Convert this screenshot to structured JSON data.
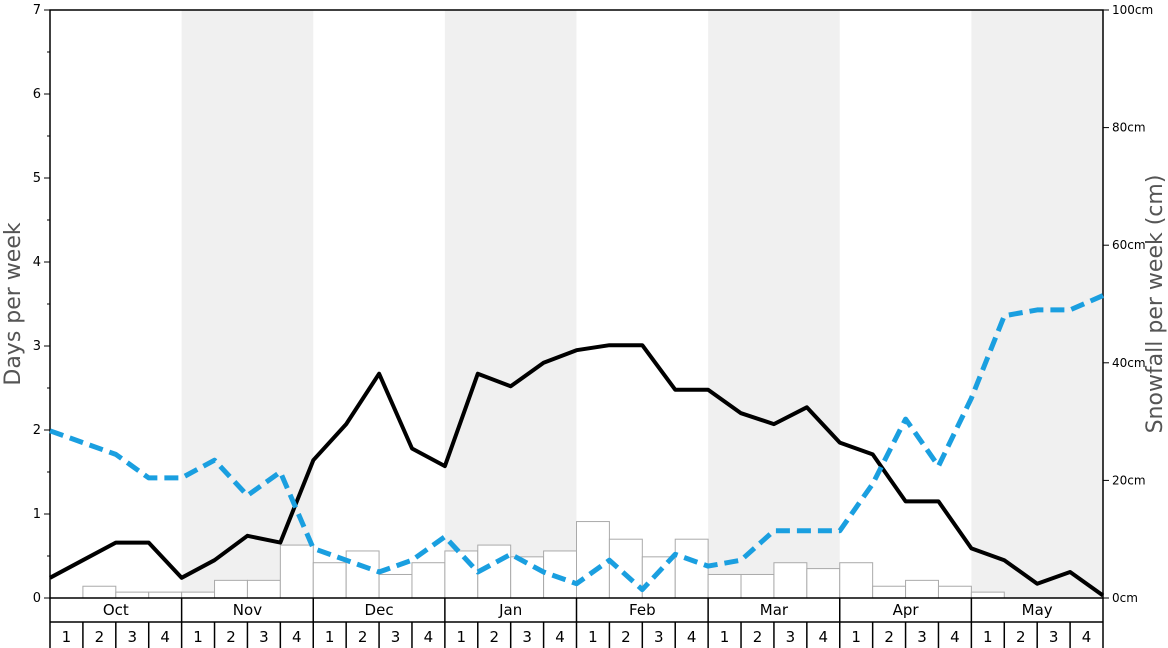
{
  "chart_data": {
    "type": "bar+line",
    "left_axis": {
      "label": "Days per week",
      "min": 0,
      "max": 7,
      "ticks": [
        "0",
        "1",
        "2",
        "3",
        "4",
        "5",
        "6",
        "7"
      ]
    },
    "right_axis": {
      "label": "Snowfall per week (cm)",
      "min": 0,
      "max": 100,
      "ticks": [
        "0cm",
        "20cm",
        "40cm",
        "60cm",
        "80cm",
        "100cm"
      ]
    },
    "months": [
      "Oct",
      "Nov",
      "Dec",
      "Jan",
      "Feb",
      "Mar",
      "Apr",
      "May"
    ],
    "week_labels": [
      "1",
      "2",
      "3",
      "4"
    ],
    "shaded_months": [
      false,
      true,
      false,
      true,
      false,
      true,
      false,
      true
    ],
    "colors": {
      "line_days": "#000000",
      "line_dashed": "#1a9fe0",
      "bar_fill": "#ffffff",
      "bar_stroke": "#aaaaaa",
      "shade": "#f0f0f0"
    },
    "series": [
      {
        "kind": "bar",
        "axis": "right",
        "values": [
          0,
          2,
          1,
          1,
          1,
          3,
          3,
          9,
          6,
          8,
          4,
          6,
          8,
          9,
          7,
          8,
          13,
          10,
          7,
          10,
          4,
          4,
          6,
          5,
          6,
          2,
          3,
          2,
          1,
          0,
          0,
          0
        ]
      },
      {
        "kind": "line",
        "axis": "left",
        "style": "solid",
        "values": [
          0.24,
          0.45,
          0.66,
          0.66,
          0.24,
          0.45,
          0.74,
          0.66,
          1.64,
          2.07,
          2.67,
          1.78,
          1.57,
          2.67,
          2.52,
          2.8,
          2.95,
          3.01,
          3.01,
          2.48,
          2.48,
          2.2,
          2.07,
          2.27,
          1.85,
          1.71,
          1.15,
          1.15,
          0.59,
          0.45,
          0.17,
          0.31,
          0.03
        ]
      },
      {
        "kind": "line",
        "axis": "left",
        "style": "dashed",
        "values": [
          1.99,
          1.85,
          1.71,
          1.43,
          1.43,
          1.64,
          1.22,
          1.5,
          0.59,
          0.45,
          0.31,
          0.45,
          0.73,
          0.31,
          0.52,
          0.31,
          0.17,
          0.45,
          0.1,
          0.52,
          0.38,
          0.45,
          0.8,
          0.8,
          0.8,
          1.36,
          2.13,
          1.57,
          2.38,
          3.36,
          3.43,
          3.43,
          3.6
        ]
      }
    ]
  }
}
